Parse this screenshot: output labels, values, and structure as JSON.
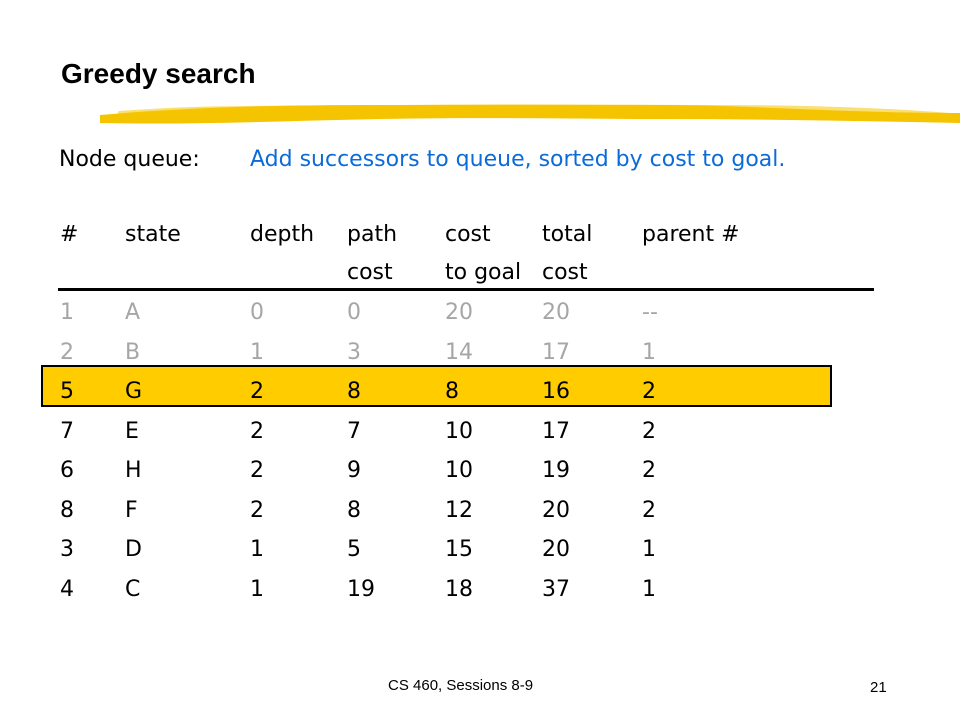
{
  "slide": {
    "title": "Greedy search",
    "node_queue_label": "Node queue:",
    "node_queue_description": "Add successors to queue, sorted by cost to goal.",
    "footer": "CS 460,  Sessions 8-9",
    "page_number": "21"
  },
  "colors": {
    "accent_blue": "#0B6BD8",
    "highlight_fill": "#FFCC00",
    "faded_row_text": "#A6A6A6",
    "title_underline": "#F5C400"
  },
  "table": {
    "headers": [
      {
        "line1": "#",
        "line2": ""
      },
      {
        "line1": "state",
        "line2": ""
      },
      {
        "line1": "depth",
        "line2": ""
      },
      {
        "line1": "path",
        "line2": "cost"
      },
      {
        "line1": "cost",
        "line2": "to goal"
      },
      {
        "line1": "total",
        "line2": "cost"
      },
      {
        "line1": "parent #",
        "line2": ""
      }
    ],
    "rows": [
      {
        "cells": [
          "1",
          "A",
          "0",
          "0",
          "20",
          "20",
          "--"
        ],
        "style": "faded"
      },
      {
        "cells": [
          "2",
          "B",
          "1",
          "3",
          "14",
          "17",
          "1"
        ],
        "style": "faded"
      },
      {
        "cells": [
          "5",
          "G",
          "2",
          "8",
          "8",
          "16",
          "2"
        ],
        "style": "highlighted"
      },
      {
        "cells": [
          "7",
          "E",
          "2",
          "7",
          "10",
          "17",
          "2"
        ],
        "style": "normal"
      },
      {
        "cells": [
          "6",
          "H",
          "2",
          "9",
          "10",
          "19",
          "2"
        ],
        "style": "normal"
      },
      {
        "cells": [
          "8",
          "F",
          "2",
          "8",
          "12",
          "20",
          "2"
        ],
        "style": "normal"
      },
      {
        "cells": [
          "3",
          "D",
          "1",
          "5",
          "15",
          "20",
          "1"
        ],
        "style": "normal"
      },
      {
        "cells": [
          "4",
          "C",
          "1",
          "19",
          "18",
          "37",
          "1"
        ],
        "style": "normal"
      }
    ]
  }
}
